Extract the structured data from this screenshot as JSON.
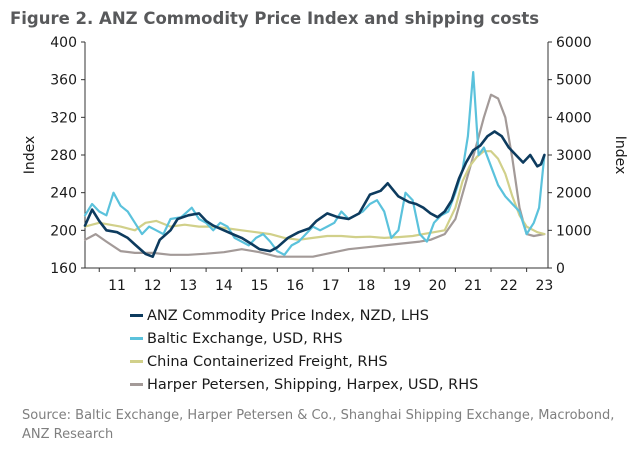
{
  "figure": {
    "title": "Figure 2.  ANZ Commodity Price Index and shipping costs",
    "source": "Source: Baltic Exchange, Harper Petersen & Co., Shanghai Shipping Exchange, Macrobond, ANZ Research"
  },
  "chart_data": {
    "type": "line",
    "title": "Figure 2.  ANZ Commodity Price Index and shipping costs",
    "ylabel": "Index",
    "y2label": "Index",
    "ylim": [
      160,
      400
    ],
    "y2lim": [
      0,
      6000
    ],
    "yticks": [
      160,
      200,
      240,
      280,
      320,
      360,
      400
    ],
    "y2ticks": [
      0,
      1000,
      2000,
      3000,
      4000,
      5000,
      6000
    ],
    "xlim": [
      2010.6,
      2023.6
    ],
    "xticklabels": [
      "11",
      "12",
      "13",
      "14",
      "15",
      "16",
      "17",
      "18",
      "19",
      "20",
      "21",
      "22",
      "23"
    ],
    "grid": false,
    "legend_position": "bottom",
    "series": [
      {
        "name": "ANZ Commodity Price Index, NZD, LHS",
        "color": "#0d3b5e",
        "axis": "left",
        "x": [
          2010.6,
          2010.8,
          2011.0,
          2011.2,
          2011.5,
          2011.8,
          2012.0,
          2012.3,
          2012.5,
          2012.7,
          2013.0,
          2013.2,
          2013.5,
          2013.8,
          2014.0,
          2014.2,
          2014.5,
          2014.8,
          2015.0,
          2015.3,
          2015.5,
          2015.8,
          2016.0,
          2016.3,
          2016.6,
          2016.9,
          2017.1,
          2017.4,
          2017.7,
          2018.0,
          2018.3,
          2018.6,
          2018.9,
          2019.1,
          2019.4,
          2019.7,
          2019.9,
          2020.1,
          2020.3,
          2020.5,
          2020.7,
          2020.9,
          2021.1,
          2021.3,
          2021.5,
          2021.7,
          2021.9,
          2022.1,
          2022.3,
          2022.5,
          2022.7,
          2022.9,
          2023.1,
          2023.3,
          2023.4,
          2023.5
        ],
        "y": [
          205,
          222,
          210,
          200,
          198,
          192,
          185,
          175,
          172,
          190,
          200,
          212,
          216,
          218,
          210,
          205,
          200,
          195,
          192,
          185,
          180,
          178,
          182,
          192,
          198,
          202,
          210,
          218,
          214,
          212,
          218,
          238,
          242,
          250,
          236,
          230,
          228,
          224,
          218,
          214,
          220,
          232,
          255,
          272,
          285,
          290,
          300,
          305,
          300,
          288,
          280,
          272,
          280,
          268,
          270,
          280
        ]
      },
      {
        "name": "Baltic Exchange, USD, RHS",
        "color": "#5bc2dc",
        "axis": "right",
        "x": [
          2010.6,
          2010.8,
          2011.0,
          2011.2,
          2011.4,
          2011.6,
          2011.8,
          2012.0,
          2012.2,
          2012.4,
          2012.6,
          2012.8,
          2013.0,
          2013.3,
          2013.6,
          2013.8,
          2014.0,
          2014.2,
          2014.4,
          2014.6,
          2014.8,
          2015.0,
          2015.2,
          2015.4,
          2015.6,
          2015.8,
          2016.0,
          2016.2,
          2016.4,
          2016.6,
          2016.8,
          2017.0,
          2017.2,
          2017.4,
          2017.6,
          2017.8,
          2018.0,
          2018.2,
          2018.4,
          2018.6,
          2018.8,
          2019.0,
          2019.2,
          2019.4,
          2019.6,
          2019.8,
          2020.0,
          2020.2,
          2020.4,
          2020.6,
          2020.8,
          2021.0,
          2021.2,
          2021.35,
          2021.5,
          2021.65,
          2021.8,
          2022.0,
          2022.2,
          2022.4,
          2022.6,
          2022.8,
          2023.0,
          2023.2,
          2023.35,
          2023.5
        ],
        "y": [
          1400,
          1700,
          1500,
          1400,
          2000,
          1650,
          1500,
          1200,
          900,
          1100,
          1000,
          900,
          1300,
          1350,
          1600,
          1300,
          1200,
          1000,
          1200,
          1100,
          800,
          700,
          600,
          800,
          900,
          700,
          450,
          350,
          600,
          700,
          900,
          1100,
          1000,
          1100,
          1200,
          1500,
          1300,
          1400,
          1500,
          1700,
          1800,
          1500,
          800,
          1000,
          2000,
          1800,
          900,
          700,
          1200,
          1400,
          1500,
          2000,
          2600,
          3500,
          5200,
          3000,
          3200,
          2700,
          2200,
          1900,
          1700,
          1500,
          900,
          1200,
          1600,
          3000
        ]
      },
      {
        "name": "China Containerized Freight, RHS",
        "color": "#d1d08a",
        "axis": "right",
        "x": [
          2010.6,
          2011.0,
          2011.3,
          2011.6,
          2012.0,
          2012.3,
          2012.6,
          2013.0,
          2013.4,
          2013.8,
          2014.2,
          2014.6,
          2015.0,
          2015.4,
          2015.8,
          2016.2,
          2016.6,
          2017.0,
          2017.4,
          2017.8,
          2018.2,
          2018.6,
          2019.0,
          2019.4,
          2019.8,
          2020.1,
          2020.4,
          2020.7,
          2021.0,
          2021.2,
          2021.4,
          2021.6,
          2021.8,
          2022.0,
          2022.2,
          2022.4,
          2022.6,
          2022.8,
          2023.0,
          2023.3,
          2023.5
        ],
        "y": [
          1100,
          1200,
          1150,
          1100,
          1000,
          1200,
          1250,
          1100,
          1150,
          1100,
          1100,
          1050,
          1000,
          950,
          900,
          800,
          750,
          800,
          850,
          850,
          820,
          830,
          800,
          820,
          850,
          900,
          950,
          1000,
          1600,
          2300,
          2700,
          2950,
          3100,
          3100,
          2900,
          2500,
          1900,
          1400,
          1100,
          950,
          900
        ]
      },
      {
        "name": "Harper Petersen, Shipping, Harpex, USD, RHS",
        "color": "#a39a98",
        "axis": "right",
        "x": [
          2010.6,
          2010.9,
          2011.2,
          2011.6,
          2012.0,
          2012.5,
          2013.0,
          2013.5,
          2014.0,
          2014.5,
          2015.0,
          2015.5,
          2016.0,
          2016.5,
          2017.0,
          2017.5,
          2018.0,
          2018.5,
          2019.0,
          2019.5,
          2020.0,
          2020.3,
          2020.7,
          2021.0,
          2021.3,
          2021.6,
          2021.8,
          2022.0,
          2022.2,
          2022.4,
          2022.6,
          2022.8,
          2023.0,
          2023.2,
          2023.5
        ],
        "y": [
          750,
          900,
          700,
          450,
          400,
          400,
          350,
          350,
          380,
          420,
          500,
          420,
          300,
          300,
          300,
          400,
          500,
          550,
          600,
          650,
          700,
          750,
          900,
          1300,
          2300,
          3300,
          4000,
          4600,
          4500,
          4000,
          2900,
          1600,
          900,
          850,
          900
        ]
      }
    ]
  }
}
